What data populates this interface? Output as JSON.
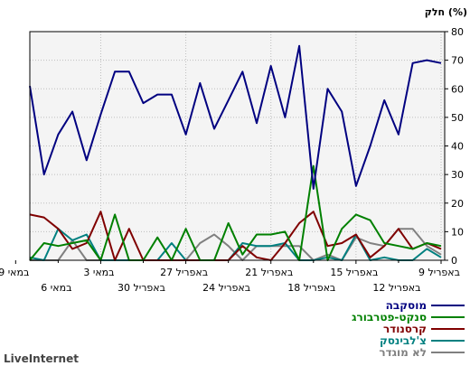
{
  "chart_data": {
    "type": "line",
    "ylabel": "חלק (%)",
    "ylim": [
      0,
      80
    ],
    "yticks": [
      0,
      10,
      20,
      30,
      40,
      50,
      60,
      70,
      80
    ],
    "grid": true,
    "x_direction": "right-to-left",
    "x_tick_labels_row1": [
      "9 באפריל",
      "15 באפריל",
      "21 באפריל",
      "27 באפריל",
      "3 במאי",
      "9 במאי"
    ],
    "x_tick_labels_row2": [
      "12 באפריל",
      "18 באפריל",
      "24 באפריל",
      "30 באפריל",
      "6 במאי"
    ],
    "series": [
      {
        "name": "מוסקבה",
        "color": "#000080",
        "values": [
          69,
          70,
          69,
          44,
          56,
          40,
          26,
          52,
          60,
          25,
          75,
          50,
          68,
          48,
          66,
          56,
          46,
          62,
          44,
          58,
          58,
          55,
          66,
          66,
          51,
          35,
          52,
          44,
          30,
          61
        ]
      },
      {
        "name": "סנקט-פטרבורג",
        "color": "#008000",
        "values": [
          5,
          6,
          4,
          5,
          6,
          14,
          16,
          11,
          0,
          33,
          0,
          10,
          9,
          9,
          2,
          13,
          0,
          0,
          11,
          0,
          8,
          0,
          0,
          16,
          0,
          7,
          6,
          5,
          6,
          0
        ]
      },
      {
        "name": "קרסנודר",
        "color": "#800000",
        "values": [
          4,
          6,
          4,
          11,
          5,
          1,
          9,
          6,
          5,
          17,
          13,
          6,
          0,
          1,
          5,
          0,
          0,
          0,
          0,
          0,
          0,
          0,
          11,
          0,
          17,
          6,
          4,
          11,
          15,
          16
        ]
      },
      {
        "name": "צ'לבינסק",
        "color": "#008080",
        "values": [
          1,
          4,
          0,
          0,
          1,
          0,
          9,
          0,
          1,
          0,
          0,
          6,
          5,
          5,
          6,
          0,
          0,
          0,
          0,
          6,
          0,
          0,
          0,
          0,
          0,
          9,
          7,
          11,
          0,
          1
        ]
      },
      {
        "name": "לא מוגדר",
        "color": "#808080",
        "values": [
          2,
          5,
          11,
          11,
          5,
          6,
          8,
          0,
          2,
          0,
          5,
          5,
          5,
          5,
          0,
          5,
          9,
          6,
          0,
          0,
          0,
          0,
          0,
          0,
          0,
          0,
          7,
          0,
          0,
          0
        ]
      }
    ]
  },
  "brand": "LiveInternet"
}
